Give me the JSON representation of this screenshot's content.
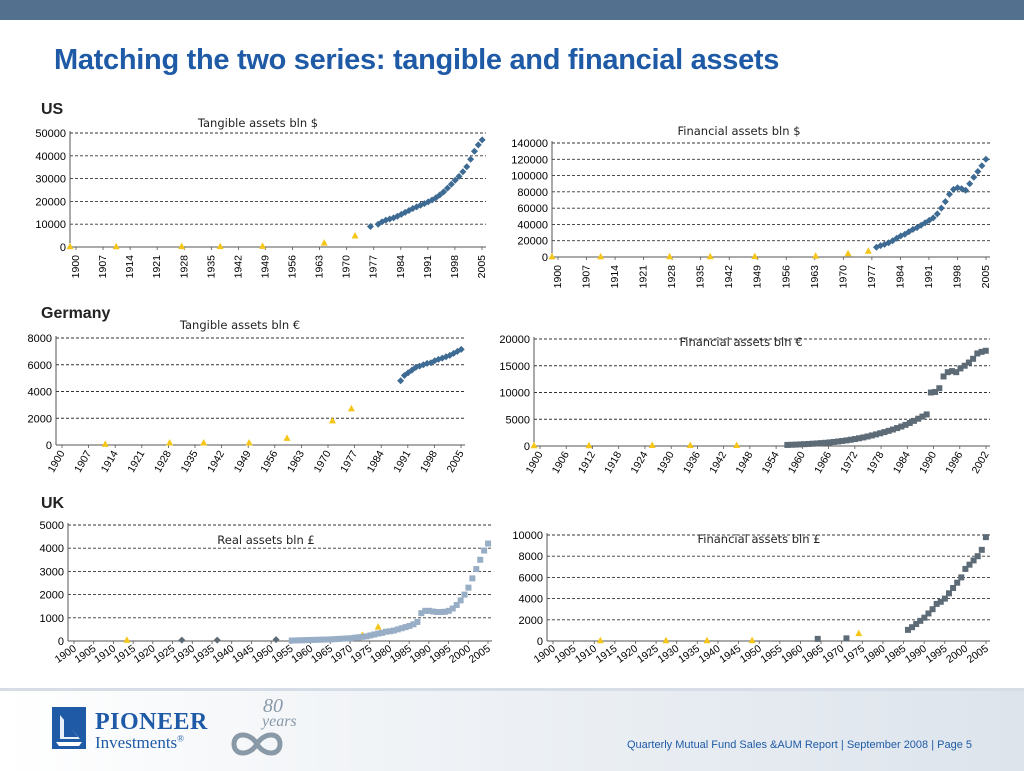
{
  "title": "Matching the two series: tangible and financial assets",
  "countries": [
    "US",
    "Germany",
    "UK"
  ],
  "footer": {
    "text": "Quarterly Mutual Fund Sales &AUM Report | September 2008 | Page 5",
    "logo_line1": "PIONEER",
    "logo_line2": "Investments",
    "logo_mark": "®",
    "anniversary_number": "80",
    "anniversary_word": "years"
  },
  "colors": {
    "header_bar": "#53718f",
    "title": "#1f5aa6",
    "series_blue": "#3e6b93",
    "series_slate": "#6f8fae",
    "series_light": "#98aec6",
    "series_gray": "#5d6b77",
    "triangle_yellow": "#f5c518"
  },
  "chart_data": [
    {
      "id": "us-tangible",
      "type": "scatter",
      "title": "Tangible assets bln $",
      "xlim": [
        1900,
        2008
      ],
      "ylim": [
        0,
        50000
      ],
      "yticks": [
        0,
        10000,
        20000,
        30000,
        40000,
        50000
      ],
      "ytick_labels": [
        "0",
        "10000",
        "20000",
        "30000",
        "40000",
        "50000"
      ],
      "xticks": [
        "1900",
        "1907",
        "1914",
        "1921",
        "1928",
        "1935",
        "1942",
        "1949",
        "1956",
        "1963",
        "1970",
        "1977",
        "1984",
        "1991",
        "1998",
        "2005"
      ],
      "grid": "horizontal dashed",
      "series": [
        {
          "marker": "triangle",
          "color": "#f5c518",
          "x": [
            1900,
            1912,
            1929,
            1939,
            1950,
            1966,
            1974
          ],
          "y": [
            100,
            100,
            150,
            150,
            300,
            1700,
            4800
          ]
        },
        {
          "marker": "diamond",
          "color": "#3e6b93",
          "x": [
            1978,
            1980,
            1981,
            1982,
            1983,
            1984,
            1985,
            1986,
            1987,
            1988,
            1989,
            1990,
            1991,
            1992,
            1993,
            1994,
            1995,
            1996,
            1997,
            1998,
            1999,
            2000,
            2001,
            2002,
            2003,
            2004,
            2005,
            2006,
            2007
          ],
          "y": [
            9000,
            10000,
            11000,
            11800,
            12300,
            12800,
            13500,
            14300,
            15200,
            16000,
            16900,
            17600,
            18300,
            19000,
            19800,
            20600,
            21600,
            22800,
            24200,
            25800,
            27500,
            29300,
            31000,
            33000,
            35200,
            38500,
            42000,
            44800,
            47000
          ]
        }
      ]
    },
    {
      "id": "us-financial",
      "type": "scatter",
      "title": "Financial assets bln $",
      "xlim": [
        1900,
        2008
      ],
      "ylim": [
        0,
        140000
      ],
      "yticks": [
        0,
        20000,
        40000,
        60000,
        80000,
        100000,
        120000,
        140000
      ],
      "ytick_labels": [
        "0",
        "20000",
        "40000",
        "60000",
        "80000",
        "100000",
        "120000",
        "140000"
      ],
      "xticks": [
        "1900",
        "1907",
        "1914",
        "1921",
        "1928",
        "1935",
        "1942",
        "1949",
        "1956",
        "1963",
        "1970",
        "1977",
        "1984",
        "1991",
        "1998",
        "2005"
      ],
      "grid": "horizontal dashed",
      "series": [
        {
          "marker": "triangle",
          "color": "#f5c518",
          "x": [
            1900,
            1912,
            1929,
            1939,
            1950,
            1965,
            1973,
            1978
          ],
          "y": [
            200,
            200,
            300,
            300,
            500,
            1000,
            4000,
            7000
          ]
        },
        {
          "marker": "diamond",
          "color": "#3e6b93",
          "x": [
            1980,
            1981,
            1982,
            1983,
            1984,
            1985,
            1986,
            1987,
            1988,
            1989,
            1990,
            1991,
            1992,
            1993,
            1994,
            1995,
            1996,
            1997,
            1998,
            1999,
            2000,
            2001,
            2002,
            2003,
            2004,
            2005,
            2006,
            2007
          ],
          "y": [
            12000,
            14000,
            15500,
            17500,
            20000,
            23000,
            26000,
            28000,
            31000,
            34000,
            36000,
            39000,
            42000,
            45000,
            48000,
            53000,
            60000,
            68000,
            77000,
            83000,
            85000,
            84000,
            82000,
            90000,
            98000,
            105000,
            112000,
            120000
          ]
        }
      ]
    },
    {
      "id": "de-tangible",
      "type": "scatter",
      "title": "Tangible assets bln €",
      "xlim": [
        1900,
        2008
      ],
      "ylim": [
        0,
        8000
      ],
      "yticks": [
        0,
        2000,
        4000,
        6000,
        8000
      ],
      "ytick_labels": [
        "0",
        "2000",
        "4000",
        "6000",
        "8000"
      ],
      "xticks": [
        "1900",
        "1907",
        "1914",
        "1921",
        "1928",
        "1935",
        "1942",
        "1949",
        "1956",
        "1963",
        "1970",
        "1977",
        "1984",
        "1991",
        "1998",
        "2005"
      ],
      "grid": "horizontal dashed",
      "series": [
        {
          "marker": "triangle",
          "color": "#f5c518",
          "x": [
            1913,
            1930,
            1939,
            1951,
            1961,
            1973,
            1978
          ],
          "y": [
            50,
            150,
            150,
            150,
            500,
            1800,
            2700
          ]
        },
        {
          "marker": "diamond",
          "color": "#3e6b93",
          "x": [
            1991,
            1992,
            1993,
            1994,
            1995,
            1996,
            1997,
            1998,
            1999,
            2000,
            2001,
            2002,
            2003,
            2004,
            2005,
            2006,
            2007
          ],
          "y": [
            4800,
            5200,
            5400,
            5600,
            5800,
            5900,
            6000,
            6100,
            6150,
            6300,
            6400,
            6500,
            6600,
            6700,
            6850,
            7000,
            7150
          ]
        }
      ]
    },
    {
      "id": "de-financial",
      "type": "scatter",
      "title": "Financial assets bln €",
      "xlim": [
        1900,
        2008
      ],
      "ylim": [
        0,
        20000
      ],
      "yticks": [
        0,
        5000,
        10000,
        15000,
        20000
      ],
      "ytick_labels": [
        "0",
        "5000",
        "10000",
        "15000",
        "20000"
      ],
      "xticks": [
        "1900",
        "1906",
        "1912",
        "1918",
        "1924",
        "1930",
        "1936",
        "1942",
        "1948",
        "1954",
        "1960",
        "1966",
        "1972",
        "1978",
        "1984",
        "1990",
        "1996",
        "2002"
      ],
      "grid": "horizontal dashed",
      "series": [
        {
          "marker": "triangle",
          "color": "#f5c518",
          "x": [
            1900,
            1913,
            1928,
            1937,
            1948
          ],
          "y": [
            50,
            50,
            100,
            100,
            100
          ]
        },
        {
          "marker": "square",
          "color": "#5d6b77",
          "x": [
            1960,
            1961,
            1962,
            1963,
            1964,
            1965,
            1966,
            1967,
            1968,
            1969,
            1970,
            1971,
            1972,
            1973,
            1974,
            1975,
            1976,
            1977,
            1978,
            1979,
            1980,
            1981,
            1982,
            1983,
            1984,
            1985,
            1986,
            1987,
            1988,
            1989,
            1990,
            1991,
            1992,
            1993,
            1994,
            1995,
            1996,
            1997,
            1998,
            1999,
            2000,
            2001,
            2002,
            2003,
            2004,
            2005,
            2006,
            2007
          ],
          "y": [
            200,
            230,
            260,
            300,
            340,
            380,
            430,
            480,
            540,
            600,
            670,
            750,
            840,
            940,
            1050,
            1170,
            1300,
            1450,
            1600,
            1780,
            1970,
            2170,
            2380,
            2600,
            2830,
            3080,
            3350,
            3640,
            3950,
            4300,
            4700,
            5100,
            5500,
            5900,
            10000,
            10100,
            10800,
            13000,
            13800,
            14000,
            13800,
            14500,
            15000,
            15600,
            16300,
            17300,
            17600,
            17800
          ]
        }
      ]
    },
    {
      "id": "uk-real",
      "type": "scatter",
      "title": "Real assets bln £",
      "xlim": [
        1900,
        2008
      ],
      "ylim": [
        0,
        5000
      ],
      "yticks": [
        0,
        1000,
        2000,
        3000,
        4000,
        5000
      ],
      "ytick_labels": [
        "0",
        "1000",
        "2000",
        "3000",
        "4000",
        "5000"
      ],
      "xticks": [
        "1900",
        "1905",
        "1910",
        "1915",
        "1920",
        "1925",
        "1930",
        "1935",
        "1940",
        "1945",
        "1950",
        "1955",
        "1960",
        "1965",
        "1970",
        "1975",
        "1980",
        "1985",
        "1990",
        "1995",
        "2000",
        "2005"
      ],
      "grid": "horizontal dashed",
      "series": [
        {
          "marker": "triangle",
          "color": "#f5c518",
          "x": [
            1915,
            1975,
            1979
          ],
          "y": [
            30,
            250,
            600
          ]
        },
        {
          "marker": "diamond",
          "color": "#5d6b77",
          "x": [
            1929,
            1938,
            1953
          ],
          "y": [
            40,
            40,
            60
          ]
        },
        {
          "marker": "square",
          "color": "#98aec6",
          "x": [
            1957,
            1958,
            1959,
            1960,
            1961,
            1962,
            1963,
            1964,
            1965,
            1966,
            1967,
            1968,
            1969,
            1970,
            1971,
            1972,
            1973,
            1974,
            1975,
            1976,
            1977,
            1978,
            1979,
            1980,
            1981,
            1982,
            1983,
            1984,
            1985,
            1986,
            1987,
            1988,
            1989,
            1990,
            1991,
            1992,
            1993,
            1994,
            1995,
            1996,
            1997,
            1998,
            1999,
            2000,
            2001,
            2002,
            2003,
            2004,
            2005,
            2006,
            2007
          ],
          "y": [
            20,
            25,
            30,
            35,
            40,
            45,
            50,
            55,
            60,
            65,
            70,
            80,
            90,
            100,
            110,
            120,
            140,
            160,
            180,
            200,
            240,
            280,
            320,
            350,
            400,
            420,
            450,
            500,
            550,
            600,
            650,
            720,
            820,
            1200,
            1300,
            1300,
            1270,
            1250,
            1250,
            1260,
            1300,
            1400,
            1550,
            1750,
            2000,
            2300,
            2700,
            3100,
            3500,
            3900,
            4200
          ]
        }
      ]
    },
    {
      "id": "uk-financial",
      "type": "scatter",
      "title": "Financial assets bln £",
      "xlim": [
        1900,
        2008
      ],
      "ylim": [
        0,
        10000
      ],
      "yticks": [
        0,
        2000,
        4000,
        6000,
        8000,
        10000
      ],
      "ytick_labels": [
        "0",
        "2000",
        "4000",
        "6000",
        "8000",
        "10000"
      ],
      "xticks": [
        "1900",
        "1905",
        "1910",
        "1915",
        "1920",
        "1925",
        "1930",
        "1935",
        "1940",
        "1945",
        "1950",
        "1955",
        "1960",
        "1965",
        "1970",
        "1975",
        "1980",
        "1985",
        "1990",
        "1995",
        "2000",
        "2005"
      ],
      "grid": "horizontal dashed",
      "series": [
        {
          "marker": "triangle",
          "color": "#f5c518",
          "x": [
            1913,
            1929,
            1939,
            1950,
            1976
          ],
          "y": [
            20,
            20,
            20,
            30,
            700
          ]
        },
        {
          "marker": "square",
          "color": "#5d6b77",
          "x": [
            1966,
            1973,
            1988,
            1989,
            1990,
            1991,
            1992,
            1993,
            1994,
            1995,
            1996,
            1997,
            1998,
            1999,
            2000,
            2001,
            2002,
            2003,
            2004,
            2005,
            2006,
            2007
          ],
          "y": [
            200,
            250,
            1050,
            1300,
            1600,
            1900,
            2200,
            2600,
            3000,
            3500,
            3700,
            4000,
            4500,
            5000,
            5500,
            6000,
            6800,
            7200,
            7600,
            8000,
            8600,
            9800
          ]
        }
      ]
    }
  ]
}
